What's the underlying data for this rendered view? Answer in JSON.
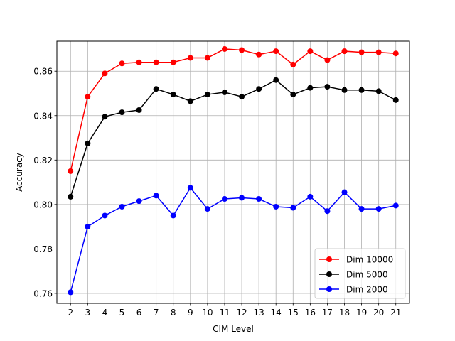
{
  "chart_data": {
    "type": "line",
    "xlabel": "CIM Level",
    "ylabel": "Accuracy",
    "x": [
      2,
      3,
      4,
      5,
      6,
      7,
      8,
      9,
      10,
      11,
      12,
      13,
      14,
      15,
      16,
      17,
      18,
      19,
      20,
      21
    ],
    "xlim": [
      1.2,
      21.8
    ],
    "ylim": [
      0.7555,
      0.8735
    ],
    "yticks": [
      0.76,
      0.78,
      0.8,
      0.82,
      0.84,
      0.86
    ],
    "ytick_labels": [
      "0.76",
      "0.78",
      "0.80",
      "0.82",
      "0.84",
      "0.86"
    ],
    "grid": true,
    "legend_position": "lower-right",
    "series": [
      {
        "name": "Dim 10000",
        "color": "#ff0000",
        "values": [
          0.815,
          0.8485,
          0.859,
          0.8635,
          0.864,
          0.864,
          0.864,
          0.866,
          0.866,
          0.87,
          0.8695,
          0.8675,
          0.869,
          0.863,
          0.869,
          0.865,
          0.869,
          0.8685,
          0.8685,
          0.868
        ]
      },
      {
        "name": "Dim 5000",
        "color": "#000000",
        "values": [
          0.8035,
          0.8275,
          0.8395,
          0.8415,
          0.8425,
          0.852,
          0.8495,
          0.8465,
          0.8495,
          0.8505,
          0.8485,
          0.852,
          0.856,
          0.8495,
          0.8525,
          0.853,
          0.8515,
          0.8515,
          0.851,
          0.847
        ]
      },
      {
        "name": "Dim 2000",
        "color": "#0000ff",
        "values": [
          0.7605,
          0.79,
          0.795,
          0.799,
          0.8015,
          0.804,
          0.795,
          0.8075,
          0.798,
          0.8025,
          0.803,
          0.8025,
          0.799,
          0.7985,
          0.8035,
          0.797,
          0.8055,
          0.798,
          0.798,
          0.7995
        ]
      }
    ]
  }
}
